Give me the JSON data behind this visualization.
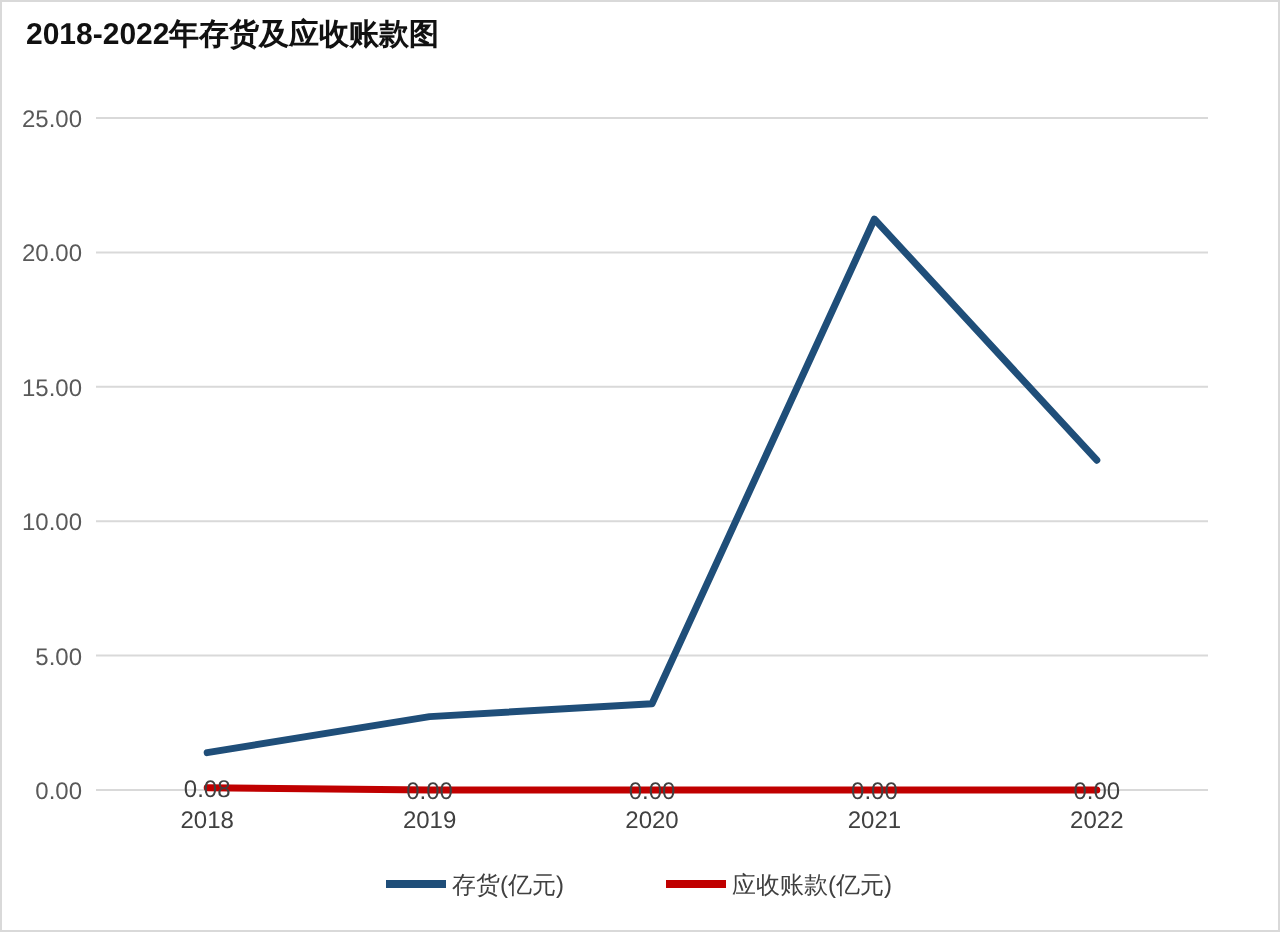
{
  "chart_data": {
    "type": "line",
    "title": "2018-2022年存货及应收账款图",
    "categories": [
      "2018",
      "2019",
      "2020",
      "2021",
      "2022"
    ],
    "series": [
      {
        "name": "存货(亿元)",
        "color": "#1f4e79",
        "values": [
          1.39,
          2.73,
          3.21,
          21.24,
          12.27
        ]
      },
      {
        "name": "应收账款(亿元)",
        "color": "#c00000",
        "values": [
          0.08,
          0,
          0,
          0,
          0
        ],
        "value_labels": [
          "0.08",
          "0.00",
          "0.00",
          "0.00",
          "0.00"
        ]
      }
    ],
    "ylim": [
      0,
      25
    ],
    "yticks": [
      {
        "value": 0,
        "label": "0.00"
      },
      {
        "value": 5,
        "label": "5.00"
      },
      {
        "value": 10,
        "label": "10.00"
      },
      {
        "value": 15,
        "label": "15.00"
      },
      {
        "value": 20,
        "label": "20.00"
      },
      {
        "value": 25,
        "label": "25.00"
      }
    ],
    "grid": "y",
    "legend": "bottom"
  }
}
